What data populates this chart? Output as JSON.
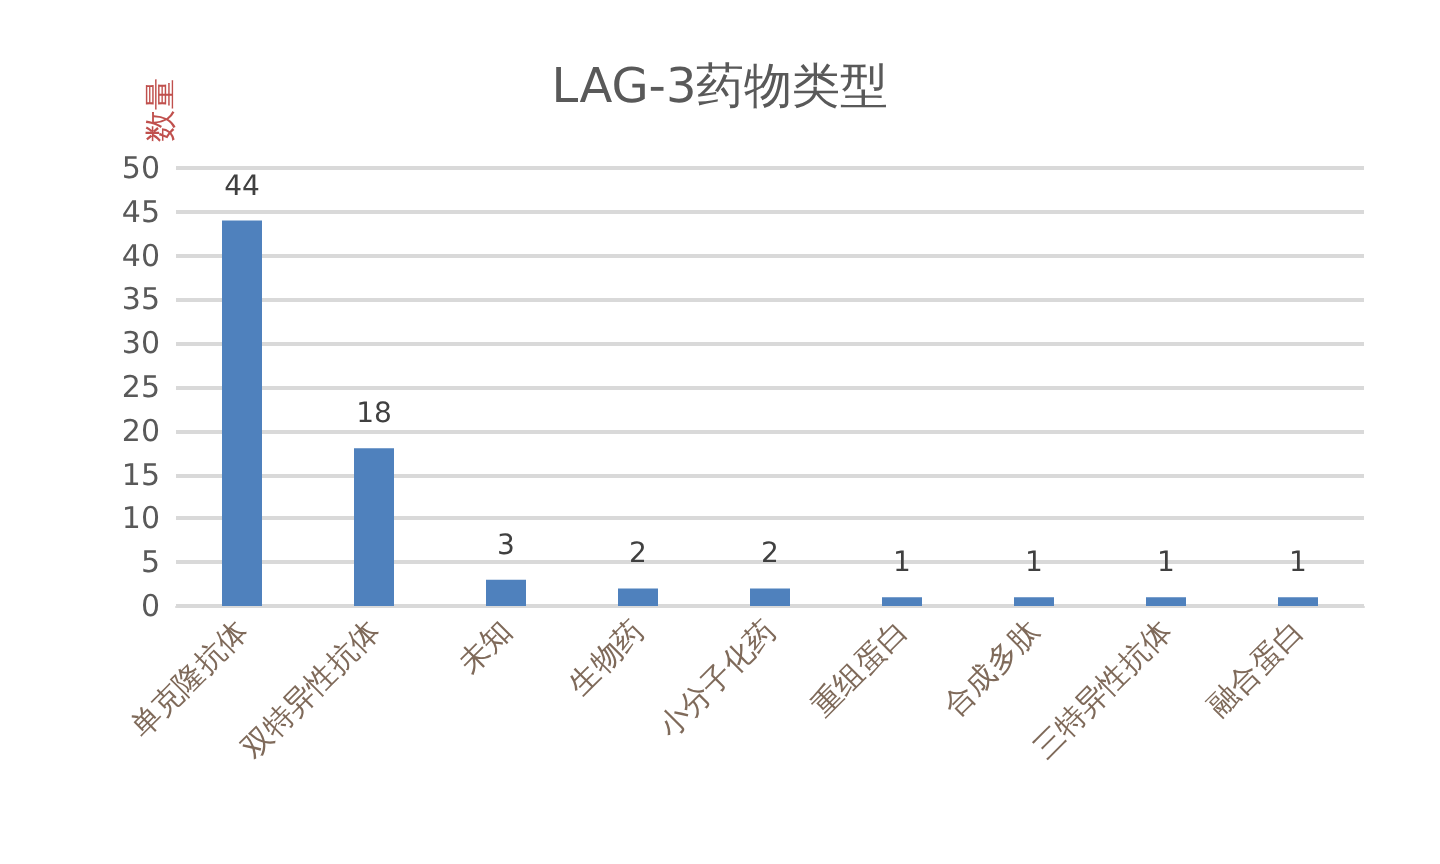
{
  "chart_data": {
    "type": "bar",
    "title": "LAG-3药物类型",
    "ylabel": "数量",
    "categories": [
      "单克隆抗体",
      "双特异性抗体",
      "未知",
      "生物药",
      "小分子化药",
      "重组蛋白",
      "合成多肽",
      "三特异性抗体",
      "融合蛋白"
    ],
    "values": [
      44,
      18,
      3,
      2,
      2,
      1,
      1,
      1,
      1
    ],
    "color": "#4f81bd",
    "ylim": [
      0,
      50
    ],
    "yticks": [
      0,
      5,
      10,
      15,
      20,
      25,
      30,
      35,
      40,
      45,
      50
    ],
    "grid": "y",
    "data_labels": true
  }
}
